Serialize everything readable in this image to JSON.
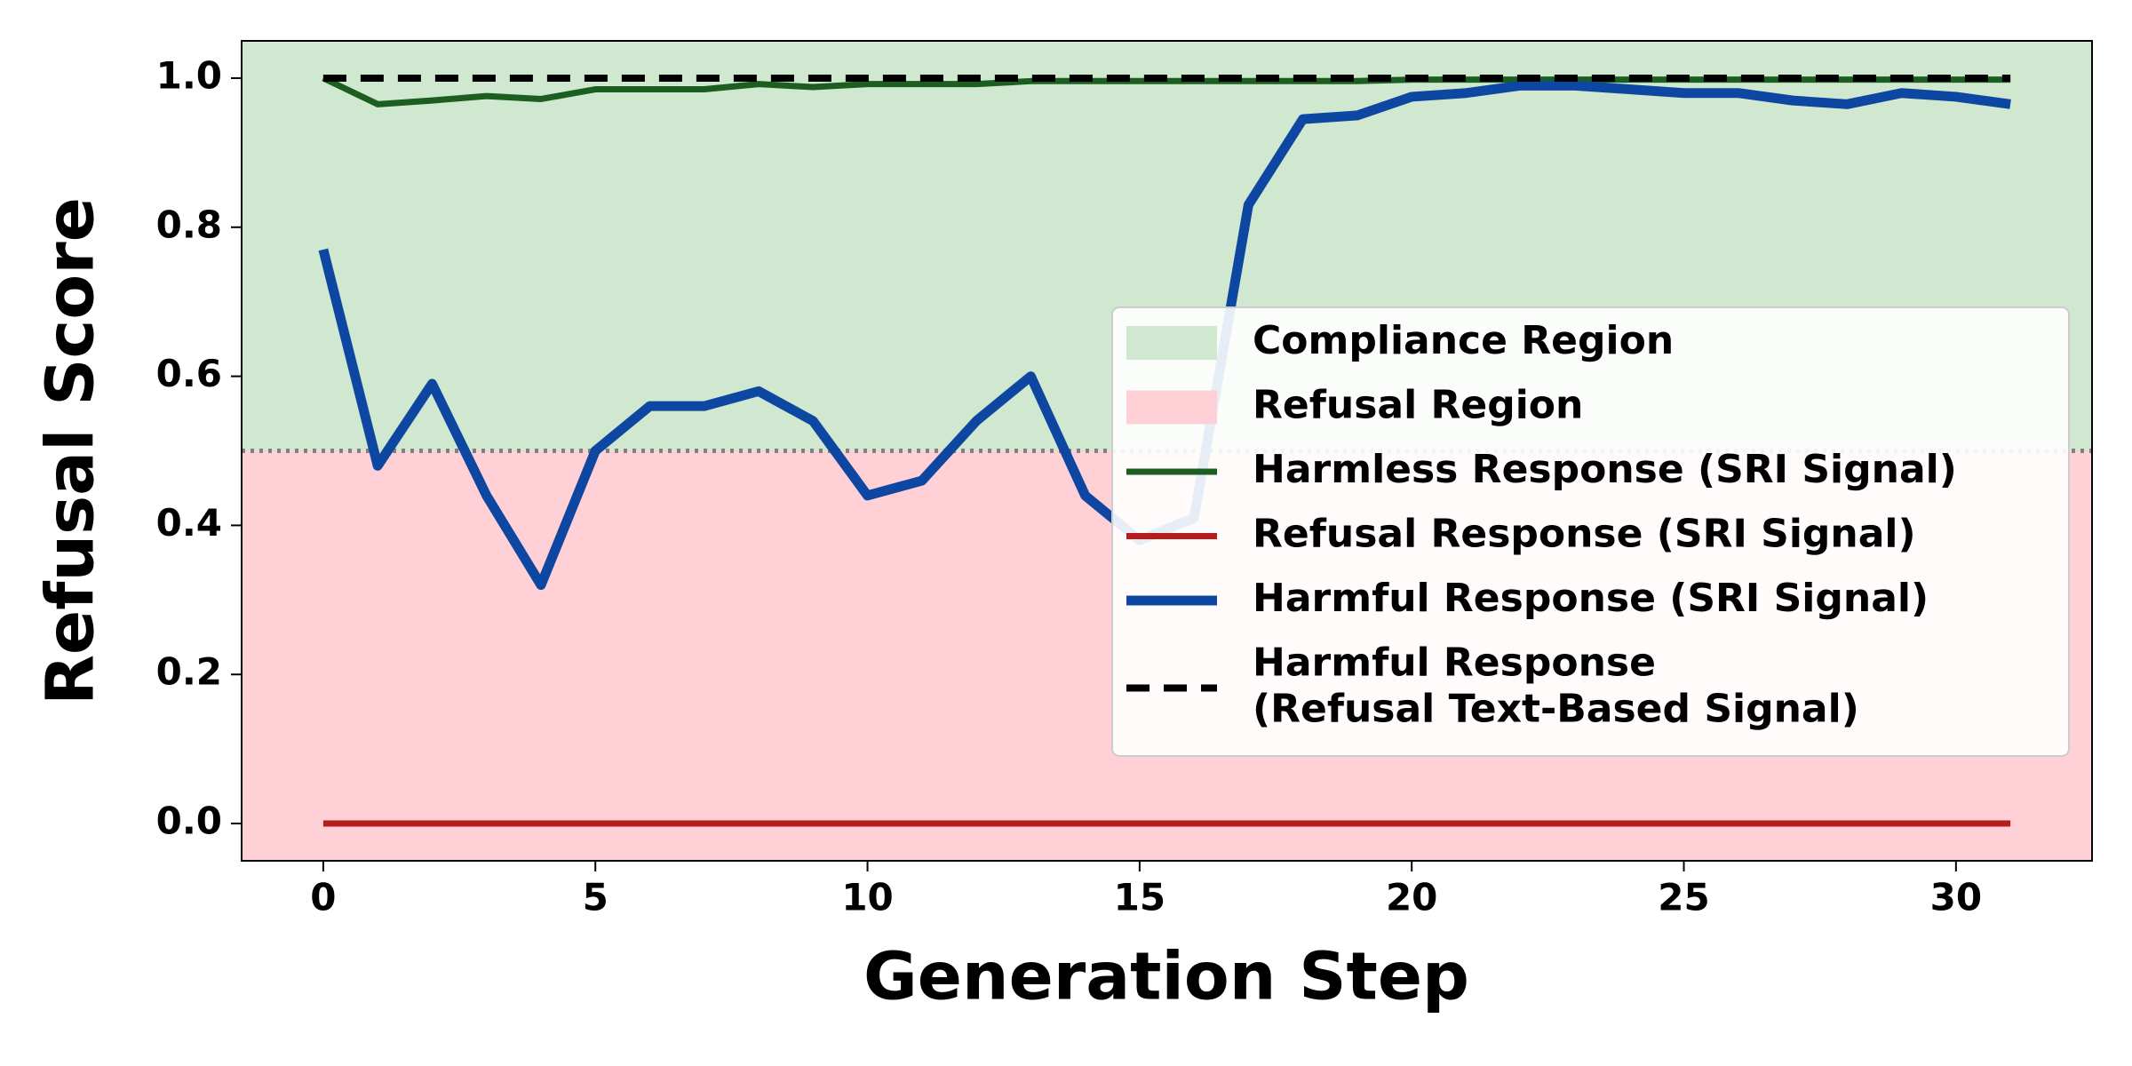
{
  "chart_data": {
    "type": "line",
    "xlabel": "Generation Step",
    "ylabel": "Refusal Score",
    "x": [
      0,
      1,
      2,
      3,
      4,
      5,
      6,
      7,
      8,
      9,
      10,
      11,
      12,
      13,
      14,
      15,
      16,
      17,
      18,
      19,
      20,
      21,
      22,
      23,
      24,
      25,
      26,
      27,
      28,
      29,
      30,
      31
    ],
    "xlim": [
      -1.5,
      32.5
    ],
    "ylim": [
      -0.05,
      1.05
    ],
    "xticks": [
      0,
      5,
      10,
      15,
      20,
      25,
      30
    ],
    "yticks": [
      {
        "value": 0,
        "label": "0.0"
      },
      0.2,
      0.4,
      0.6,
      0.8,
      {
        "value": 1,
        "label": "1.0"
      }
    ],
    "threshold": 0.5,
    "regions": [
      {
        "name": "Compliance Region",
        "color": "#cfe8cf",
        "from": 0.5,
        "to": 1.05
      },
      {
        "name": "Refusal Region",
        "color": "#ffd1d6",
        "from": -0.05,
        "to": 0.5
      }
    ],
    "series": [
      {
        "name": "Harmless Response (SRI Signal)",
        "color": "#1b5e20",
        "width": 7,
        "dash": "none",
        "values": [
          1.0,
          0.965,
          0.97,
          0.976,
          0.972,
          0.985,
          0.985,
          0.985,
          0.992,
          0.988,
          0.992,
          0.992,
          0.992,
          0.996,
          0.996,
          0.996,
          0.996,
          0.996,
          0.996,
          0.996,
          0.998,
          0.998,
          0.998,
          0.998,
          0.998,
          0.998,
          0.998,
          0.998,
          0.998,
          0.998,
          0.998,
          0.998
        ]
      },
      {
        "name": "Refusal Response (SRI Signal)",
        "color": "#b71c1c",
        "width": 7,
        "dash": "none",
        "values": [
          0,
          0,
          0,
          0,
          0,
          0,
          0,
          0,
          0,
          0,
          0,
          0,
          0,
          0,
          0,
          0,
          0,
          0,
          0,
          0,
          0,
          0,
          0,
          0,
          0,
          0,
          0,
          0,
          0,
          0,
          0,
          0
        ]
      },
      {
        "name": "Harmful Response (SRI Signal)",
        "color": "#0d47a1",
        "width": 11,
        "dash": "none",
        "values": [
          0.77,
          0.48,
          0.59,
          0.44,
          0.32,
          0.5,
          0.56,
          0.56,
          0.58,
          0.54,
          0.44,
          0.46,
          0.54,
          0.6,
          0.44,
          0.38,
          0.41,
          0.83,
          0.945,
          0.95,
          0.975,
          0.98,
          0.99,
          0.99,
          0.985,
          0.98,
          0.98,
          0.97,
          0.965,
          0.98,
          0.975,
          0.965
        ]
      },
      {
        "name": "Harmful Response\n(Refusal Text-Based Signal)",
        "color": "#000000",
        "width": 8,
        "dash": "26 16",
        "values": [
          1,
          1,
          1,
          1,
          1,
          1,
          1,
          1,
          1,
          1,
          1,
          1,
          1,
          1,
          1,
          1,
          1,
          1,
          1,
          1,
          1,
          1,
          1,
          1,
          1,
          1,
          1,
          1,
          1,
          1,
          1,
          1
        ]
      }
    ],
    "legend": "center right"
  }
}
